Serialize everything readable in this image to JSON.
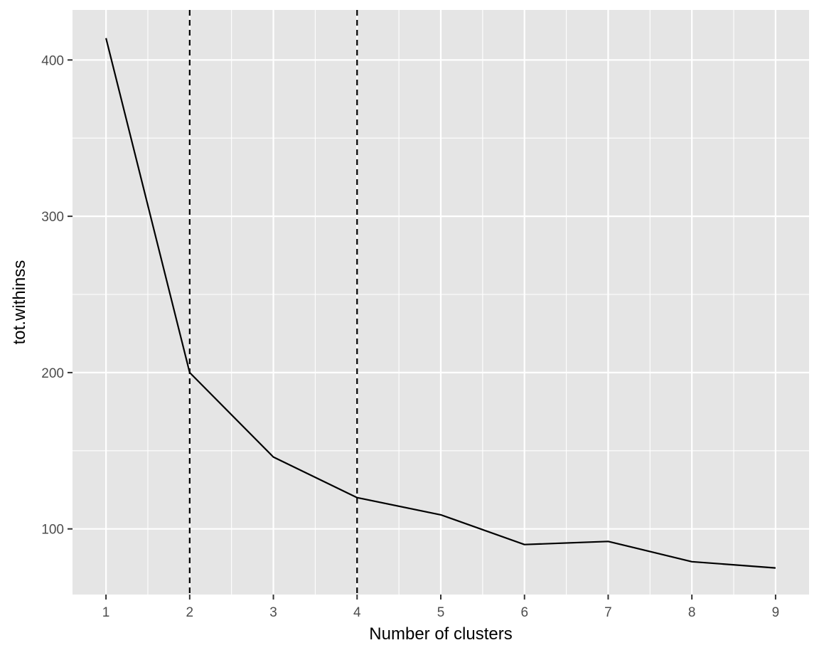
{
  "chart_data": {
    "type": "line",
    "xlabel": "Number of clusters",
    "ylabel": "tot.withinss",
    "x": [
      1,
      2,
      3,
      4,
      5,
      6,
      7,
      8,
      9
    ],
    "series": [
      {
        "values": [
          414,
          200,
          146,
          120,
          109,
          90,
          92,
          79,
          75
        ]
      }
    ],
    "vlines": [
      2,
      4
    ],
    "vline_style": "dashed",
    "xlim": [
      0.6,
      9.4
    ],
    "ylim": [
      58,
      432
    ],
    "xticks": [
      "1",
      "2",
      "3",
      "4",
      "5",
      "6",
      "7",
      "8",
      "9"
    ],
    "yticks": [
      "100",
      "200",
      "300",
      "400"
    ],
    "grid": true,
    "legend": "none",
    "colors": {
      "panel": "#e5e5e5",
      "grid": "#ffffff",
      "line": "#000000",
      "tick_label": "#4d4d4d"
    }
  }
}
